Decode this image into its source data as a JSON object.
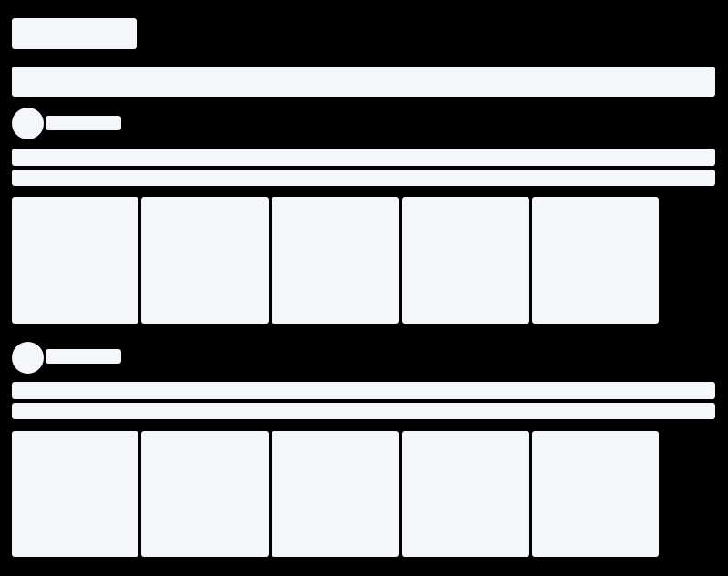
{
  "state": "loading-skeleton",
  "colors": {
    "background": "#000000",
    "placeholder": "#f5f6fa"
  },
  "sections": [
    {
      "card_count": 5
    },
    {
      "card_count": 5
    }
  ]
}
